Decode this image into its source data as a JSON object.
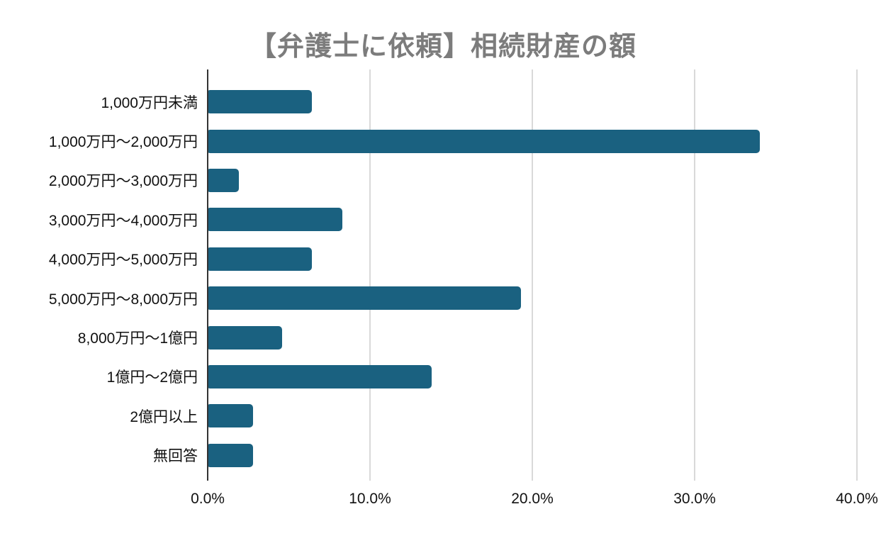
{
  "chart_data": {
    "type": "bar",
    "orientation": "horizontal",
    "title": "【弁護士に依頼】相続財産の額",
    "categories": [
      "1,000万円未満",
      "1,000万円〜2,000万円",
      "2,000万円〜3,000万円",
      "3,000万円〜4,000万円",
      "4,000万円〜5,000万円",
      "5,000万円〜8,000万円",
      "8,000万円〜1億円",
      "1億円〜2億円",
      "2億円以上",
      "無回答"
    ],
    "values": [
      6.4,
      34.0,
      1.9,
      8.3,
      6.4,
      19.3,
      4.6,
      13.8,
      2.8,
      2.8
    ],
    "unit": "%",
    "xlabel": "",
    "ylabel": "",
    "xlim": [
      0,
      40
    ],
    "x_ticks": [
      {
        "value": 0,
        "label": "0.0%"
      },
      {
        "value": 10,
        "label": "10.0%"
      },
      {
        "value": 20,
        "label": "20.0%"
      },
      {
        "value": 30,
        "label": "30.0%"
      },
      {
        "value": 40,
        "label": "40.0%"
      }
    ],
    "grid": "vertical-on",
    "legend": "none",
    "colors": {
      "bar": "#1a6180",
      "title": "#7c7c7c",
      "label": "#111111",
      "gridline": "#d9d9d9",
      "axis": "#333333",
      "background": "#ffffff"
    }
  }
}
